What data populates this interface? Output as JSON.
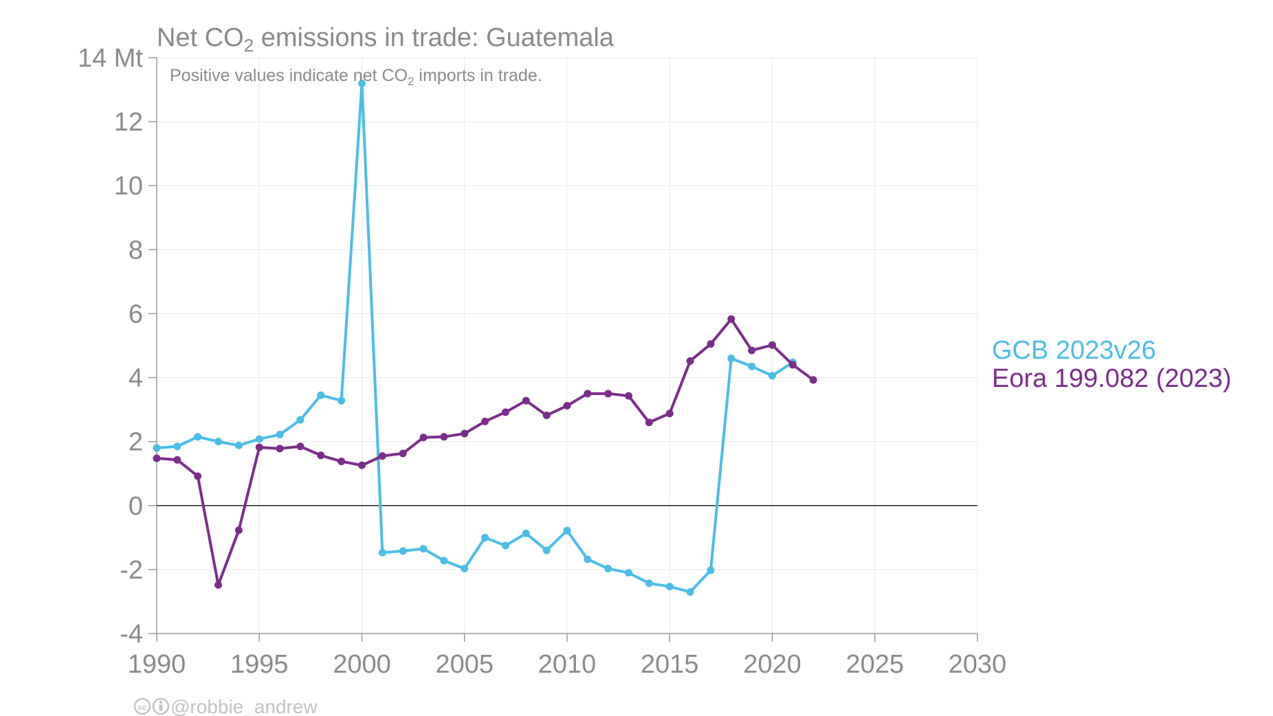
{
  "chart_data": {
    "type": "line",
    "title_prefix": "Net CO",
    "title_sub": "2",
    "title_suffix": " emissions in trade: Guatemala",
    "subtitle_prefix": "Positive values indicate net CO",
    "subtitle_sub": "2",
    "subtitle_suffix": " imports in trade.",
    "xlim": [
      1990,
      2030
    ],
    "ylim": [
      -4,
      14
    ],
    "x_ticks": [
      1990,
      1995,
      2000,
      2005,
      2010,
      2015,
      2020,
      2025,
      2030
    ],
    "y_ticks": [
      -4,
      -2,
      0,
      2,
      4,
      6,
      8,
      10,
      12,
      14
    ],
    "y_tick_labels": [
      "-4",
      "-2",
      "0",
      "2",
      "4",
      "6",
      "8",
      "10",
      "12",
      "14 Mt"
    ],
    "grid": true,
    "legend_placement": "right",
    "series": [
      {
        "name": "GCB 2023v26",
        "color": "#4bbde8",
        "x": [
          1990,
          1991,
          1992,
          1993,
          1994,
          1995,
          1996,
          1997,
          1998,
          1999,
          2000,
          2001,
          2002,
          2003,
          2004,
          2005,
          2006,
          2007,
          2008,
          2009,
          2010,
          2011,
          2012,
          2013,
          2014,
          2015,
          2016,
          2017,
          2018,
          2019,
          2020,
          2021
        ],
        "y": [
          1.8,
          1.85,
          2.15,
          2.0,
          1.88,
          2.08,
          2.22,
          2.68,
          3.45,
          3.28,
          13.2,
          -1.47,
          -1.42,
          -1.35,
          -1.72,
          -1.97,
          -1.0,
          -1.25,
          -0.87,
          -1.4,
          -0.78,
          -1.68,
          -1.97,
          -2.1,
          -2.43,
          -2.53,
          -2.7,
          -2.02,
          4.6,
          4.35,
          4.06,
          4.48
        ]
      },
      {
        "name": "Eora 199.082 (2023)",
        "color": "#7b2d8b",
        "x": [
          1990,
          1991,
          1992,
          1993,
          1994,
          1995,
          1996,
          1997,
          1998,
          1999,
          2000,
          2001,
          2002,
          2003,
          2004,
          2005,
          2006,
          2007,
          2008,
          2009,
          2010,
          2011,
          2012,
          2013,
          2014,
          2015,
          2016,
          2017,
          2018,
          2019,
          2020,
          2021,
          2022
        ],
        "y": [
          1.48,
          1.43,
          0.92,
          -2.48,
          -0.77,
          1.82,
          1.78,
          1.85,
          1.57,
          1.38,
          1.26,
          1.55,
          1.63,
          2.13,
          2.15,
          2.25,
          2.63,
          2.92,
          3.28,
          2.82,
          3.12,
          3.5,
          3.5,
          3.43,
          2.6,
          2.88,
          4.52,
          5.05,
          5.83,
          4.85,
          5.02,
          4.4,
          3.93
        ]
      }
    ]
  },
  "credit": "@robbie_andrew",
  "credit_icons": [
    "cc-icon",
    "by-icon"
  ]
}
